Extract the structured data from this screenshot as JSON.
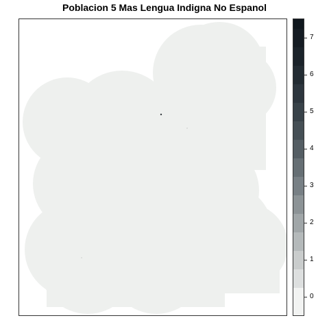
{
  "title": "Poblacion 5 Mas Lengua Indigna No Espanol",
  "map": {
    "fill_color": "#eef0ee",
    "border_color": "#333333"
  },
  "legend": {
    "breaks": [
      -0.25,
      0.25,
      0.75,
      1.25,
      1.75,
      2.25,
      2.75,
      3.25,
      3.75,
      4.25,
      4.75,
      5.25,
      5.75,
      6.25,
      6.75,
      7.25,
      7.5
    ],
    "colors": [
      "#f2f3f2",
      "#dddfdf",
      "#c9cccc",
      "#b4b9ba",
      "#a0a6a8",
      "#8c9396",
      "#788085",
      "#666f74",
      "#555e64",
      "#454f55",
      "#384249",
      "#2d363e",
      "#232c33",
      "#1b232a",
      "#151c23",
      "#10171e"
    ],
    "ticks": [
      "0",
      "1",
      "2",
      "3",
      "4",
      "5",
      "6",
      "7"
    ],
    "range": [
      -0.5,
      7.5
    ]
  }
}
